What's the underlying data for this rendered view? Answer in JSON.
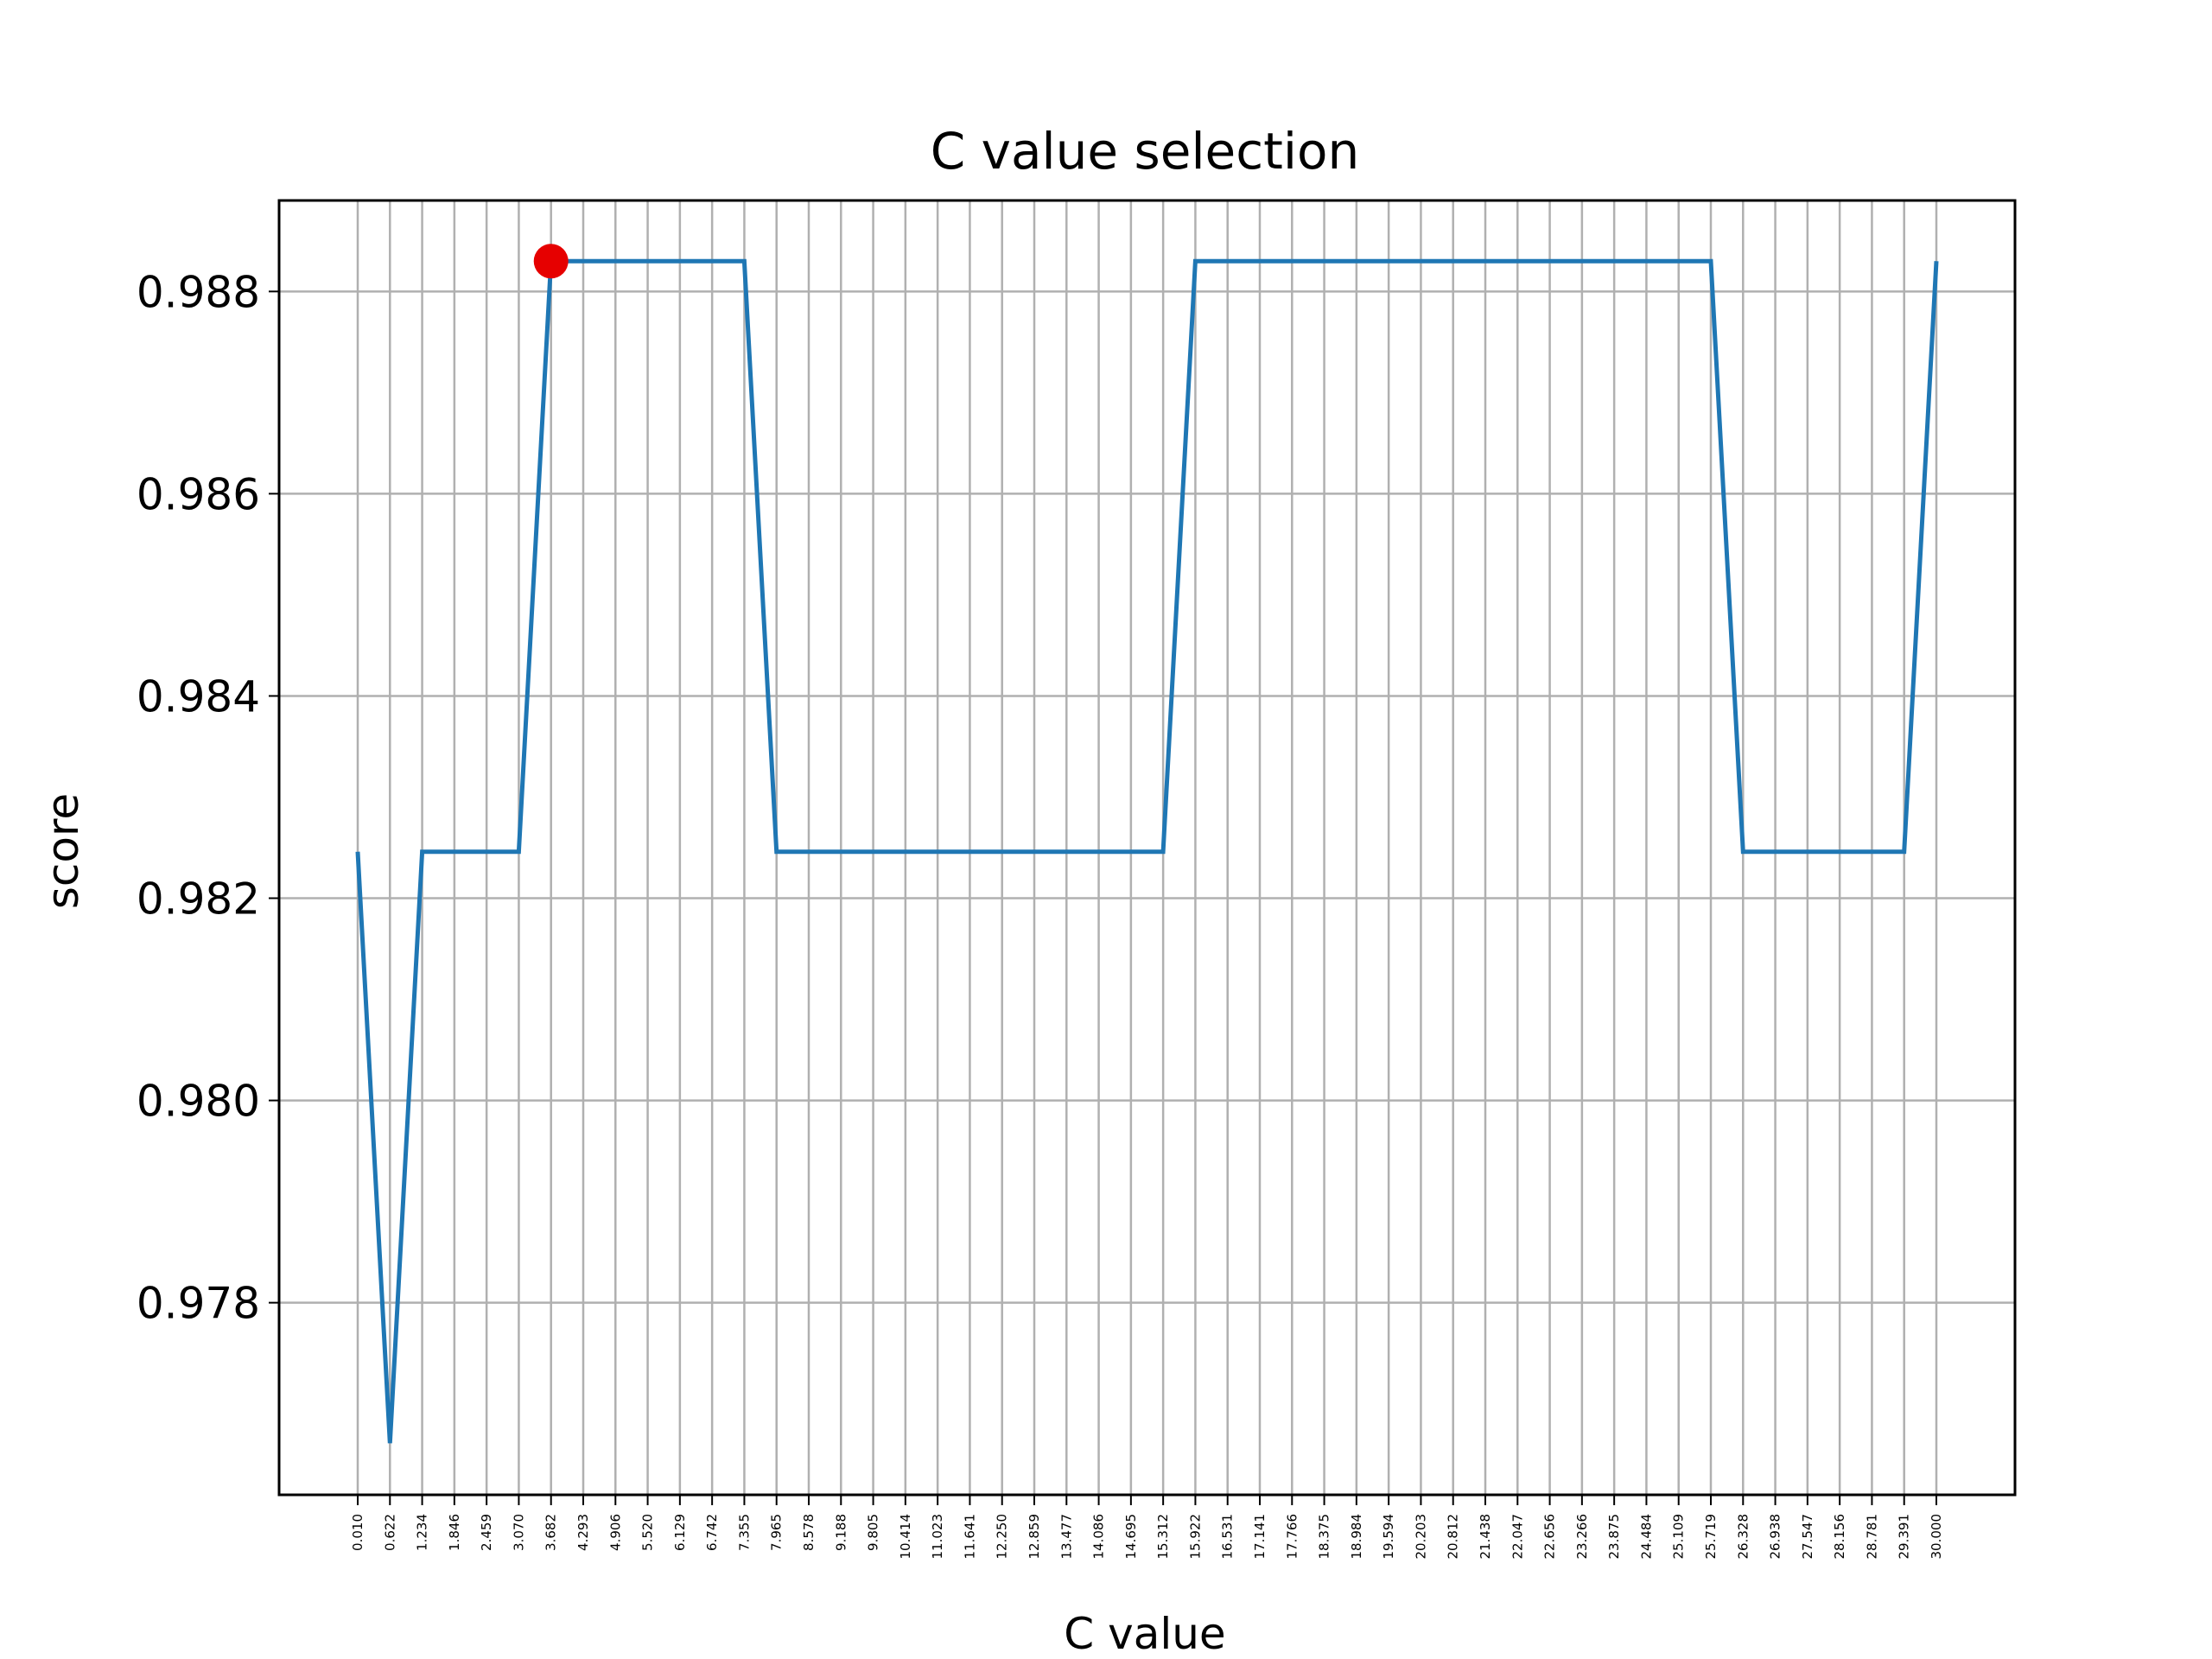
{
  "chart_data": {
    "type": "line",
    "title": "C value selection",
    "xlabel": "C value",
    "ylabel": "score",
    "grid": true,
    "x_tick_labels": [
      "0.010",
      "0.622",
      "1.234",
      "1.846",
      "2.459",
      "3.070",
      "3.682",
      "4.293",
      "4.906",
      "5.520",
      "6.129",
      "6.742",
      "7.355",
      "7.965",
      "8.578",
      "9.188",
      "9.805",
      "10.414",
      "11.023",
      "11.641",
      "12.250",
      "12.859",
      "13.477",
      "14.086",
      "14.695",
      "15.312",
      "15.922",
      "16.531",
      "17.141",
      "17.766",
      "18.375",
      "18.984",
      "19.594",
      "20.203",
      "20.812",
      "21.438",
      "22.047",
      "22.656",
      "23.266",
      "23.875",
      "24.484",
      "25.109",
      "25.719",
      "26.328",
      "26.938",
      "27.547",
      "28.156",
      "28.781",
      "29.391",
      "30.000"
    ],
    "y_ticks": [
      "0.978",
      "0.980",
      "0.982",
      "0.984",
      "0.986",
      "0.988"
    ],
    "ylim": [
      0.9761,
      0.9889
    ],
    "series": [
      {
        "color": "#1f77b4",
        "values": [
          0.98246,
          0.97661,
          0.98246,
          0.98246,
          0.98246,
          0.98246,
          0.9883,
          0.9883,
          0.9883,
          0.9883,
          0.9883,
          0.9883,
          0.9883,
          0.98246,
          0.98246,
          0.98246,
          0.98246,
          0.98246,
          0.98246,
          0.98246,
          0.98246,
          0.98246,
          0.98246,
          0.98246,
          0.98246,
          0.98246,
          0.9883,
          0.9883,
          0.9883,
          0.9883,
          0.9883,
          0.9883,
          0.9883,
          0.9883,
          0.9883,
          0.9883,
          0.9883,
          0.9883,
          0.9883,
          0.9883,
          0.9883,
          0.9883,
          0.9883,
          0.98246,
          0.98246,
          0.98246,
          0.98246,
          0.98246,
          0.98246,
          0.9883
        ]
      }
    ],
    "best_point": {
      "x": "3.682",
      "y": 0.9883,
      "color": "#e60000"
    }
  }
}
